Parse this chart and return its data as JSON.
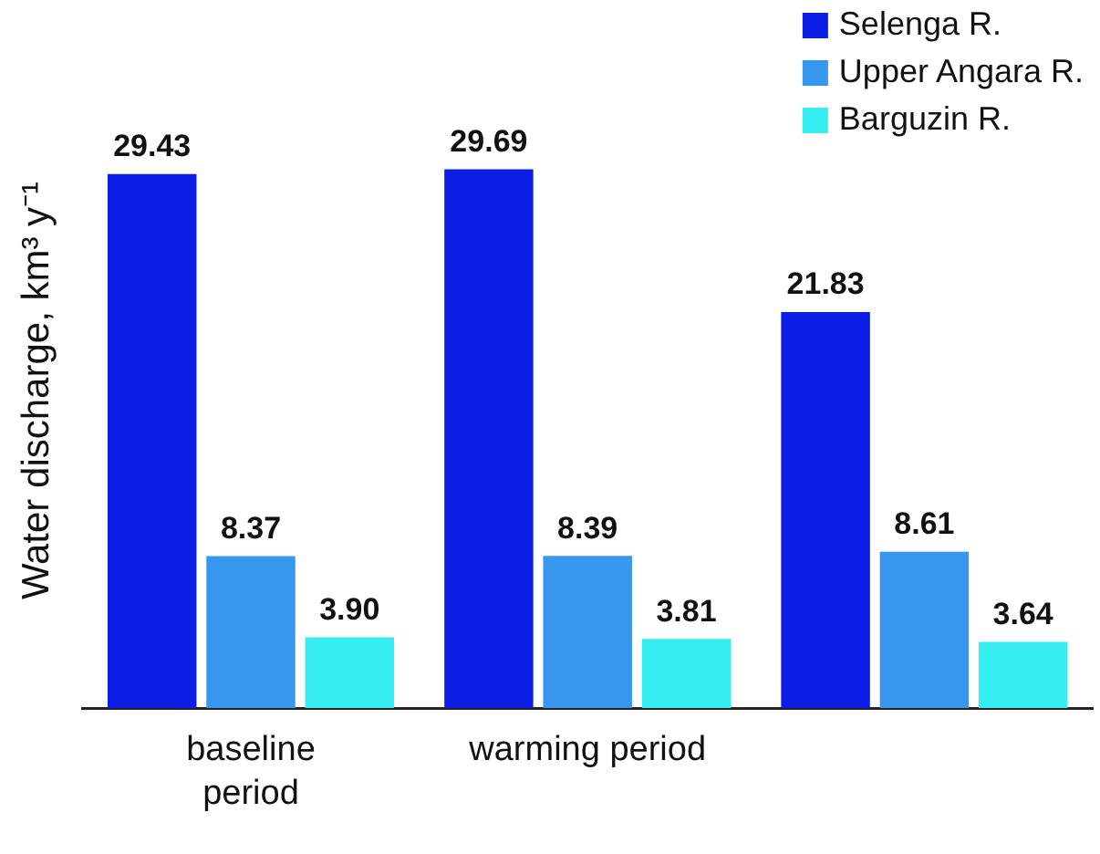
{
  "chart_data": {
    "type": "bar",
    "ylabel": "Water discharge, km³ y⁻¹",
    "categories": [
      "baseline period",
      "warming period",
      null
    ],
    "series": [
      {
        "name": "Selenga R.",
        "color": "#0c1ee6",
        "values": [
          29.43,
          29.69,
          21.83
        ],
        "value_labels": [
          "29.43",
          "29.69",
          "21.83"
        ]
      },
      {
        "name": "Upper Angara R.",
        "color": "#3797ee",
        "values": [
          8.37,
          8.39,
          8.61
        ],
        "value_labels": [
          "8.37",
          "8.39",
          "8.61"
        ]
      },
      {
        "name": "Barguzin R.",
        "color": "#35eef0",
        "values": [
          3.9,
          3.81,
          3.64
        ],
        "value_labels": [
          "3.90",
          "3.81",
          "3.64"
        ]
      }
    ],
    "legend": "top right",
    "grid": false
  }
}
